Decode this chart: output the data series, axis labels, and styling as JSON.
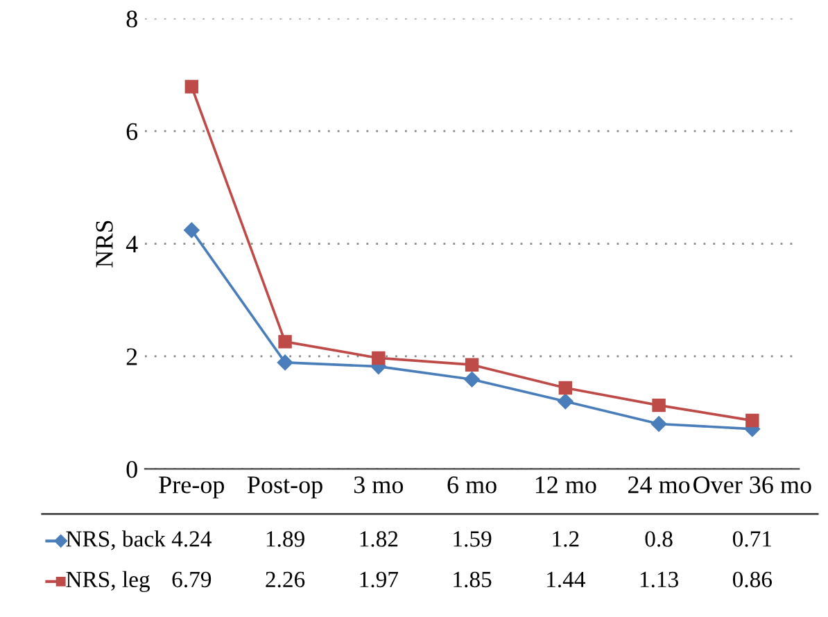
{
  "chart_data": {
    "type": "line",
    "ylabel": "NRS",
    "categories": [
      "Pre-op",
      "Post-op",
      "3 mo",
      "6 mo",
      "12 mo",
      "24 mo",
      "Over 36 mo"
    ],
    "series": [
      {
        "name": "NRS, back",
        "color": "#4a7ebb",
        "marker": "diamond",
        "values": [
          4.24,
          1.89,
          1.82,
          1.59,
          1.2,
          0.8,
          0.71
        ]
      },
      {
        "name": "NRS, leg",
        "color": "#be4b48",
        "marker": "square",
        "values": [
          6.79,
          2.26,
          1.97,
          1.85,
          1.44,
          1.13,
          0.86
        ]
      }
    ],
    "ylim": [
      0,
      8
    ],
    "yticks": [
      0,
      2,
      4,
      6,
      8
    ],
    "grid": "y",
    "legend": "bottom left",
    "data_labels": true,
    "line_style": "solid"
  }
}
